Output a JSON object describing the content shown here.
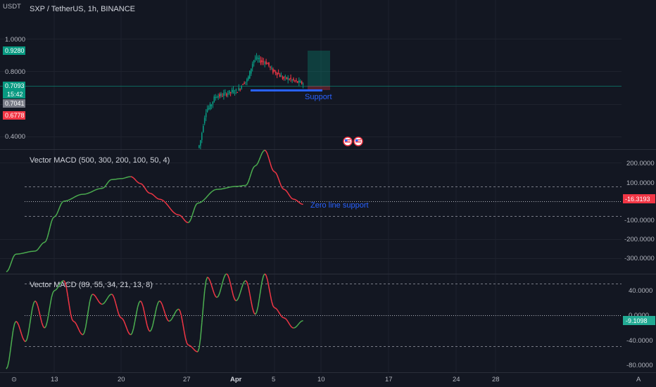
{
  "chart_title": "SXP / TetherUS, 1h, BINANCE",
  "currency": "USDT",
  "scale_letter": "A",
  "price_panel": {
    "y_ticks": [
      "1.0000",
      "0.8000",
      "0.4000"
    ],
    "price_tags": [
      {
        "label": "0.9280",
        "color": "#089981"
      },
      {
        "label": "0.7093",
        "color": "#089981"
      },
      {
        "label": "15:42",
        "color": "#089981"
      },
      {
        "label": "0.7041",
        "color": "#787b86"
      },
      {
        "label": "0.6778",
        "color": "#f23645"
      }
    ],
    "annotation": "Support",
    "event_icons": [
      "us-flag-icon",
      "us-flag-icon"
    ]
  },
  "macd1": {
    "title": "Vector MACD (500, 300, 200, 100, 50, 4)",
    "y_ticks": [
      "200.0000",
      "100.0000",
      "-100.0000",
      "-200.0000",
      "-300.0000"
    ],
    "value_tag": "-16.3193",
    "value_color": "#f23645",
    "annotation": "Zero line support"
  },
  "macd2": {
    "title": "Vector MACD (89, 55, 34, 21, 13, 8)",
    "y_ticks": [
      "40.0000",
      "0.0000",
      "-40.0000",
      "-80.0000"
    ],
    "value_tag": "-9.1098",
    "value_color": "#22ab94"
  },
  "x_axis": {
    "labels": [
      {
        "text": "13",
        "bold": false
      },
      {
        "text": "20",
        "bold": false
      },
      {
        "text": "27",
        "bold": false
      },
      {
        "text": "Apr",
        "bold": true
      },
      {
        "text": "5",
        "bold": false
      },
      {
        "text": "10",
        "bold": false
      },
      {
        "text": "17",
        "bold": false
      },
      {
        "text": "24",
        "bold": false
      },
      {
        "text": "28",
        "bold": false
      }
    ]
  },
  "colors": {
    "background": "#131722",
    "up": "#4caf50",
    "down": "#f23645",
    "accent": "#2962ff"
  },
  "chart_data": [
    {
      "type": "candlestick",
      "title": "SXP / TetherUS, 1h, BINANCE",
      "ylabel": "USDT",
      "ylim": [
        0.3,
        1.05
      ],
      "approx_close_path": [
        {
          "t": "Mar 28",
          "v": 0.31
        },
        {
          "t": "Mar 29",
          "v": 0.55
        },
        {
          "t": "Mar 30",
          "v": 0.63
        },
        {
          "t": "Apr 1",
          "v": 0.66
        },
        {
          "t": "Apr 2",
          "v": 0.72
        },
        {
          "t": "Apr 3",
          "v": 0.86
        },
        {
          "t": "Apr 4",
          "v": 0.84
        },
        {
          "t": "Apr 5",
          "v": 0.78
        },
        {
          "t": "Apr 6",
          "v": 0.74
        },
        {
          "t": "Apr 8",
          "v": 0.71
        }
      ]
    },
    {
      "type": "line",
      "title": "Vector MACD (500, 300, 200, 100, 50, 4)",
      "ylim": [
        -370,
        265
      ],
      "reference_lines": [
        75,
        0,
        -75
      ],
      "series": [
        {
          "values": [
            {
              "t": "Mar 8",
              "v": -360
            },
            {
              "t": "Mar 9",
              "v": -270
            },
            {
              "t": "Mar 11",
              "v": -255
            },
            {
              "t": "Mar 12",
              "v": -210
            },
            {
              "t": "Mar 13",
              "v": -80
            },
            {
              "t": "Mar 14",
              "v": 0
            },
            {
              "t": "Mar 16",
              "v": 35
            },
            {
              "t": "Mar 18",
              "v": 65
            },
            {
              "t": "Mar 19",
              "v": 110
            },
            {
              "t": "Mar 20",
              "v": 115
            },
            {
              "t": "Mar 21",
              "v": 125
            },
            {
              "t": "Mar 22",
              "v": 90
            },
            {
              "t": "Mar 23",
              "v": 40
            },
            {
              "t": "Mar 24",
              "v": 10
            },
            {
              "t": "Mar 26",
              "v": -70
            },
            {
              "t": "Mar 27",
              "v": -110
            },
            {
              "t": "Mar 28",
              "v": -10
            },
            {
              "t": "Mar 30",
              "v": 60
            },
            {
              "t": "Apr 1",
              "v": 75
            },
            {
              "t": "Apr 2",
              "v": 80
            },
            {
              "t": "Apr 3",
              "v": 180
            },
            {
              "t": "Apr 4",
              "v": 260
            },
            {
              "t": "Apr 5",
              "v": 150
            },
            {
              "t": "Apr 6",
              "v": 60
            },
            {
              "t": "Apr 7",
              "v": 10
            },
            {
              "t": "Apr 8",
              "v": -16.3193
            }
          ]
        }
      ]
    },
    {
      "type": "line",
      "title": "Vector MACD (89, 55, 34, 21, 13, 8)",
      "ylim": [
        -85,
        60
      ],
      "reference_lines": [
        50,
        0,
        -48
      ],
      "series": [
        {
          "values": [
            {
              "t": "Mar 8",
              "v": -80
            },
            {
              "t": "Mar 9",
              "v": -10
            },
            {
              "t": "Mar 10",
              "v": -40
            },
            {
              "t": "Mar 11",
              "v": 20
            },
            {
              "t": "Mar 12",
              "v": -20
            },
            {
              "t": "Mar 13",
              "v": 35
            },
            {
              "t": "Mar 14",
              "v": 50
            },
            {
              "t": "Mar 15",
              "v": -10
            },
            {
              "t": "Mar 16",
              "v": -30
            },
            {
              "t": "Mar 17",
              "v": 30
            },
            {
              "t": "Mar 18",
              "v": 15
            },
            {
              "t": "Mar 19",
              "v": 30
            },
            {
              "t": "Mar 20",
              "v": -5
            },
            {
              "t": "Mar 21",
              "v": -30
            },
            {
              "t": "Mar 22",
              "v": 20
            },
            {
              "t": "Mar 23",
              "v": -25
            },
            {
              "t": "Mar 24",
              "v": 20
            },
            {
              "t": "Mar 25",
              "v": -10
            },
            {
              "t": "Mar 26",
              "v": 8
            },
            {
              "t": "Mar 27",
              "v": -45
            },
            {
              "t": "Mar 28",
              "v": -55
            },
            {
              "t": "Mar 29",
              "v": 55
            },
            {
              "t": "Mar 30",
              "v": 25
            },
            {
              "t": "Mar 31",
              "v": 60
            },
            {
              "t": "Apr 1",
              "v": 20
            },
            {
              "t": "Apr 2",
              "v": 50
            },
            {
              "t": "Apr 3",
              "v": 0
            },
            {
              "t": "Apr 4",
              "v": 60
            },
            {
              "t": "Apr 5",
              "v": 10
            },
            {
              "t": "Apr 6",
              "v": -5
            },
            {
              "t": "Apr 7",
              "v": -20
            },
            {
              "t": "Apr 8",
              "v": -9.1098
            }
          ]
        }
      ]
    }
  ]
}
